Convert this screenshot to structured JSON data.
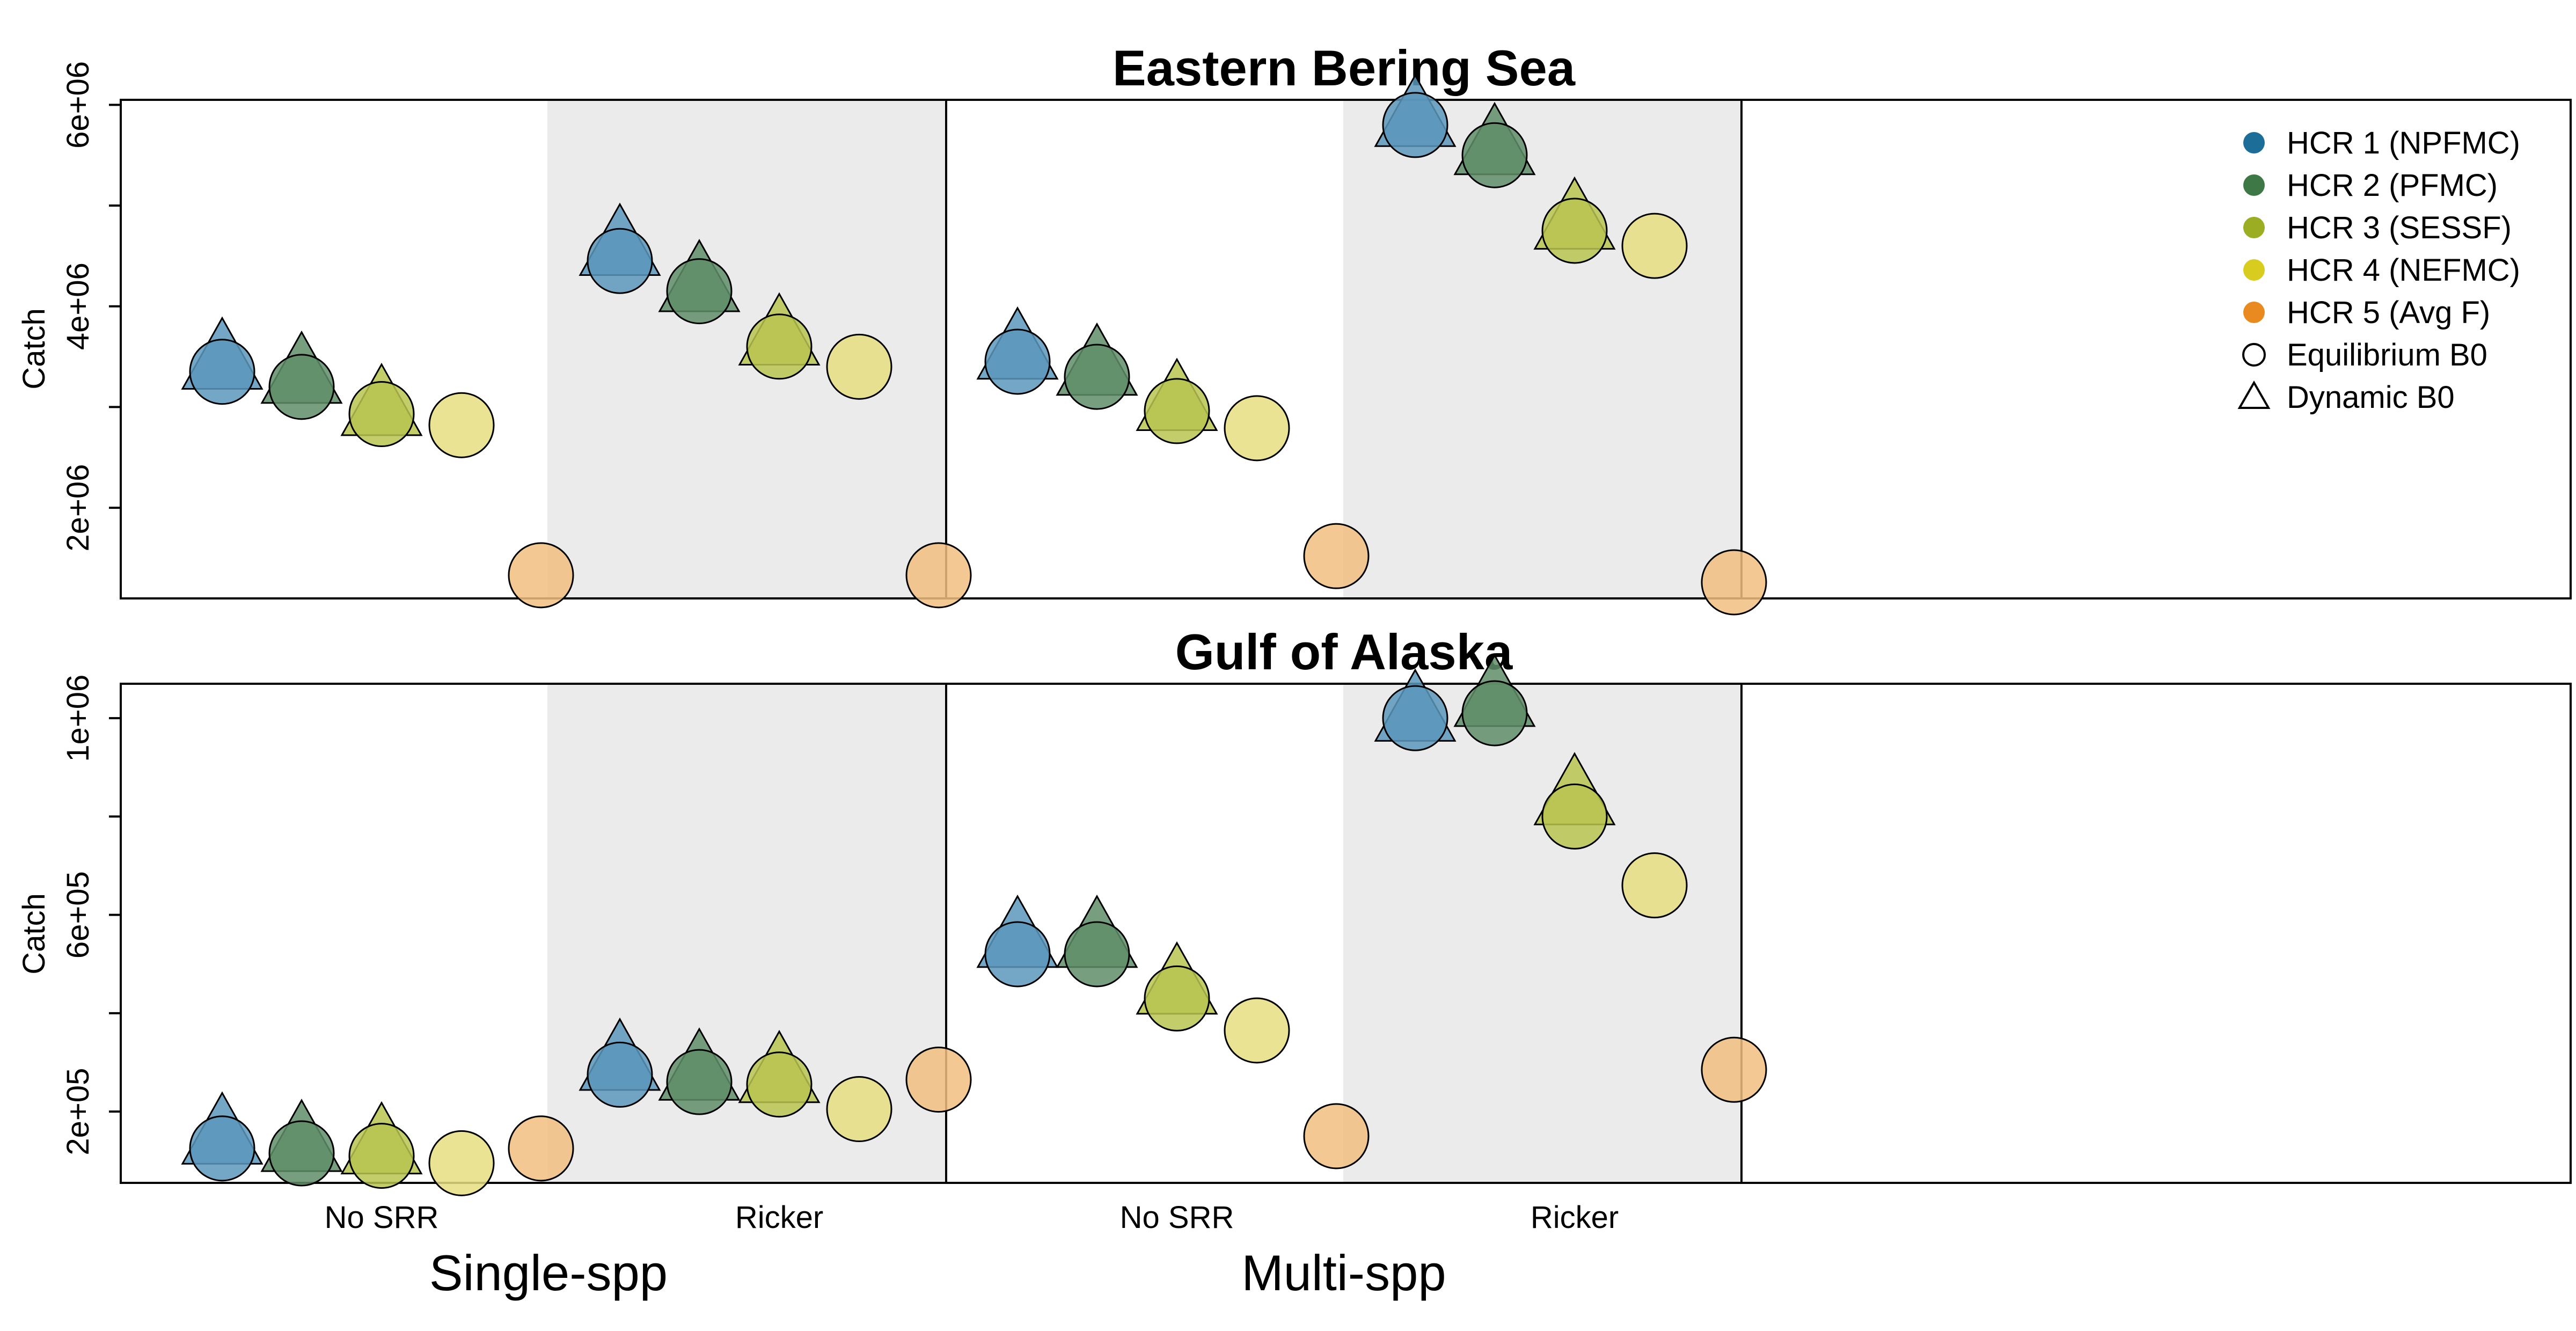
{
  "chart_data": {
    "type": "scatter",
    "group_labels": [
      "Single-spp",
      "Multi-spp"
    ],
    "categories": [
      "No SRR",
      "Ricker",
      "No SRR",
      "Ricker"
    ],
    "shaded_categories": [
      1,
      3
    ],
    "legend": {
      "position": "top-right",
      "entries": [
        {
          "label": "HCR 1 (NPFMC)",
          "color": "#1C6E98",
          "shape": "circle-filled"
        },
        {
          "label": "HCR 2 (PFMC)",
          "color": "#3E7847",
          "shape": "circle-filled"
        },
        {
          "label": "HCR 3 (SESSF)",
          "color": "#9BAD22",
          "shape": "circle-filled"
        },
        {
          "label": "HCR 4 (NEFMC)",
          "color": "#D8CD1F",
          "shape": "circle-filled"
        },
        {
          "label": "HCR 5 (Avg F)",
          "color": "#E88A1F",
          "shape": "circle-filled"
        },
        {
          "label": "Equilibrium B0",
          "shape": "circle-open"
        },
        {
          "label": "Dynamic B0",
          "shape": "triangle-open"
        }
      ]
    },
    "point_colors": [
      "#5C97BC",
      "#5F8E68",
      "#B8C450",
      "#E6DE81",
      "#F2BE80"
    ],
    "panels": [
      {
        "title": "Eastern Bering Sea",
        "ylabel": "Catch",
        "ylim": [
          1100000,
          6050000
        ],
        "yticks": [
          2000000,
          3000000,
          4000000,
          5000000,
          6000000
        ],
        "ytick_labels": [
          "2e+06",
          "",
          "4e+06",
          "",
          "6e+06"
        ],
        "equilibrium_b0": [
          [
            3350000,
            3200000,
            2930000,
            2820000,
            1330000
          ],
          [
            4450000,
            4150000,
            3600000,
            3400000,
            1330000
          ],
          [
            3450000,
            3300000,
            2960000,
            2790000,
            1520000
          ],
          [
            5800000,
            5500000,
            4750000,
            4600000,
            1260000
          ]
        ],
        "dynamic_b0": [
          [
            3430000,
            3290000,
            2970000,
            null,
            null
          ],
          [
            4560000,
            4200000,
            3670000,
            null,
            null
          ],
          [
            3530000,
            3370000,
            3020000,
            null,
            null
          ],
          [
            5840000,
            5560000,
            4820000,
            null,
            null
          ]
        ]
      },
      {
        "title": "Gulf of Alaska",
        "ylabel": "Catch",
        "ylim": [
          55000,
          1070000
        ],
        "yticks": [
          200000,
          400000,
          600000,
          800000,
          1000000
        ],
        "ytick_labels": [
          "2e+05",
          "",
          "6e+05",
          "",
          "1e+06"
        ],
        "equilibrium_b0": [
          [
            125000,
            115000,
            110000,
            95000,
            125000
          ],
          [
            275000,
            260000,
            255000,
            205000,
            265000
          ],
          [
            520000,
            520000,
            430000,
            365000,
            150000
          ],
          [
            1000000,
            1010000,
            800000,
            660000,
            285000
          ]
        ],
        "dynamic_b0": [
          [
            145000,
            130000,
            125000,
            null,
            null
          ],
          [
            295000,
            275000,
            270000,
            null,
            null
          ],
          [
            545000,
            545000,
            450000,
            null,
            null
          ],
          [
            1005000,
            1035000,
            835000,
            null,
            null
          ]
        ]
      }
    ]
  }
}
